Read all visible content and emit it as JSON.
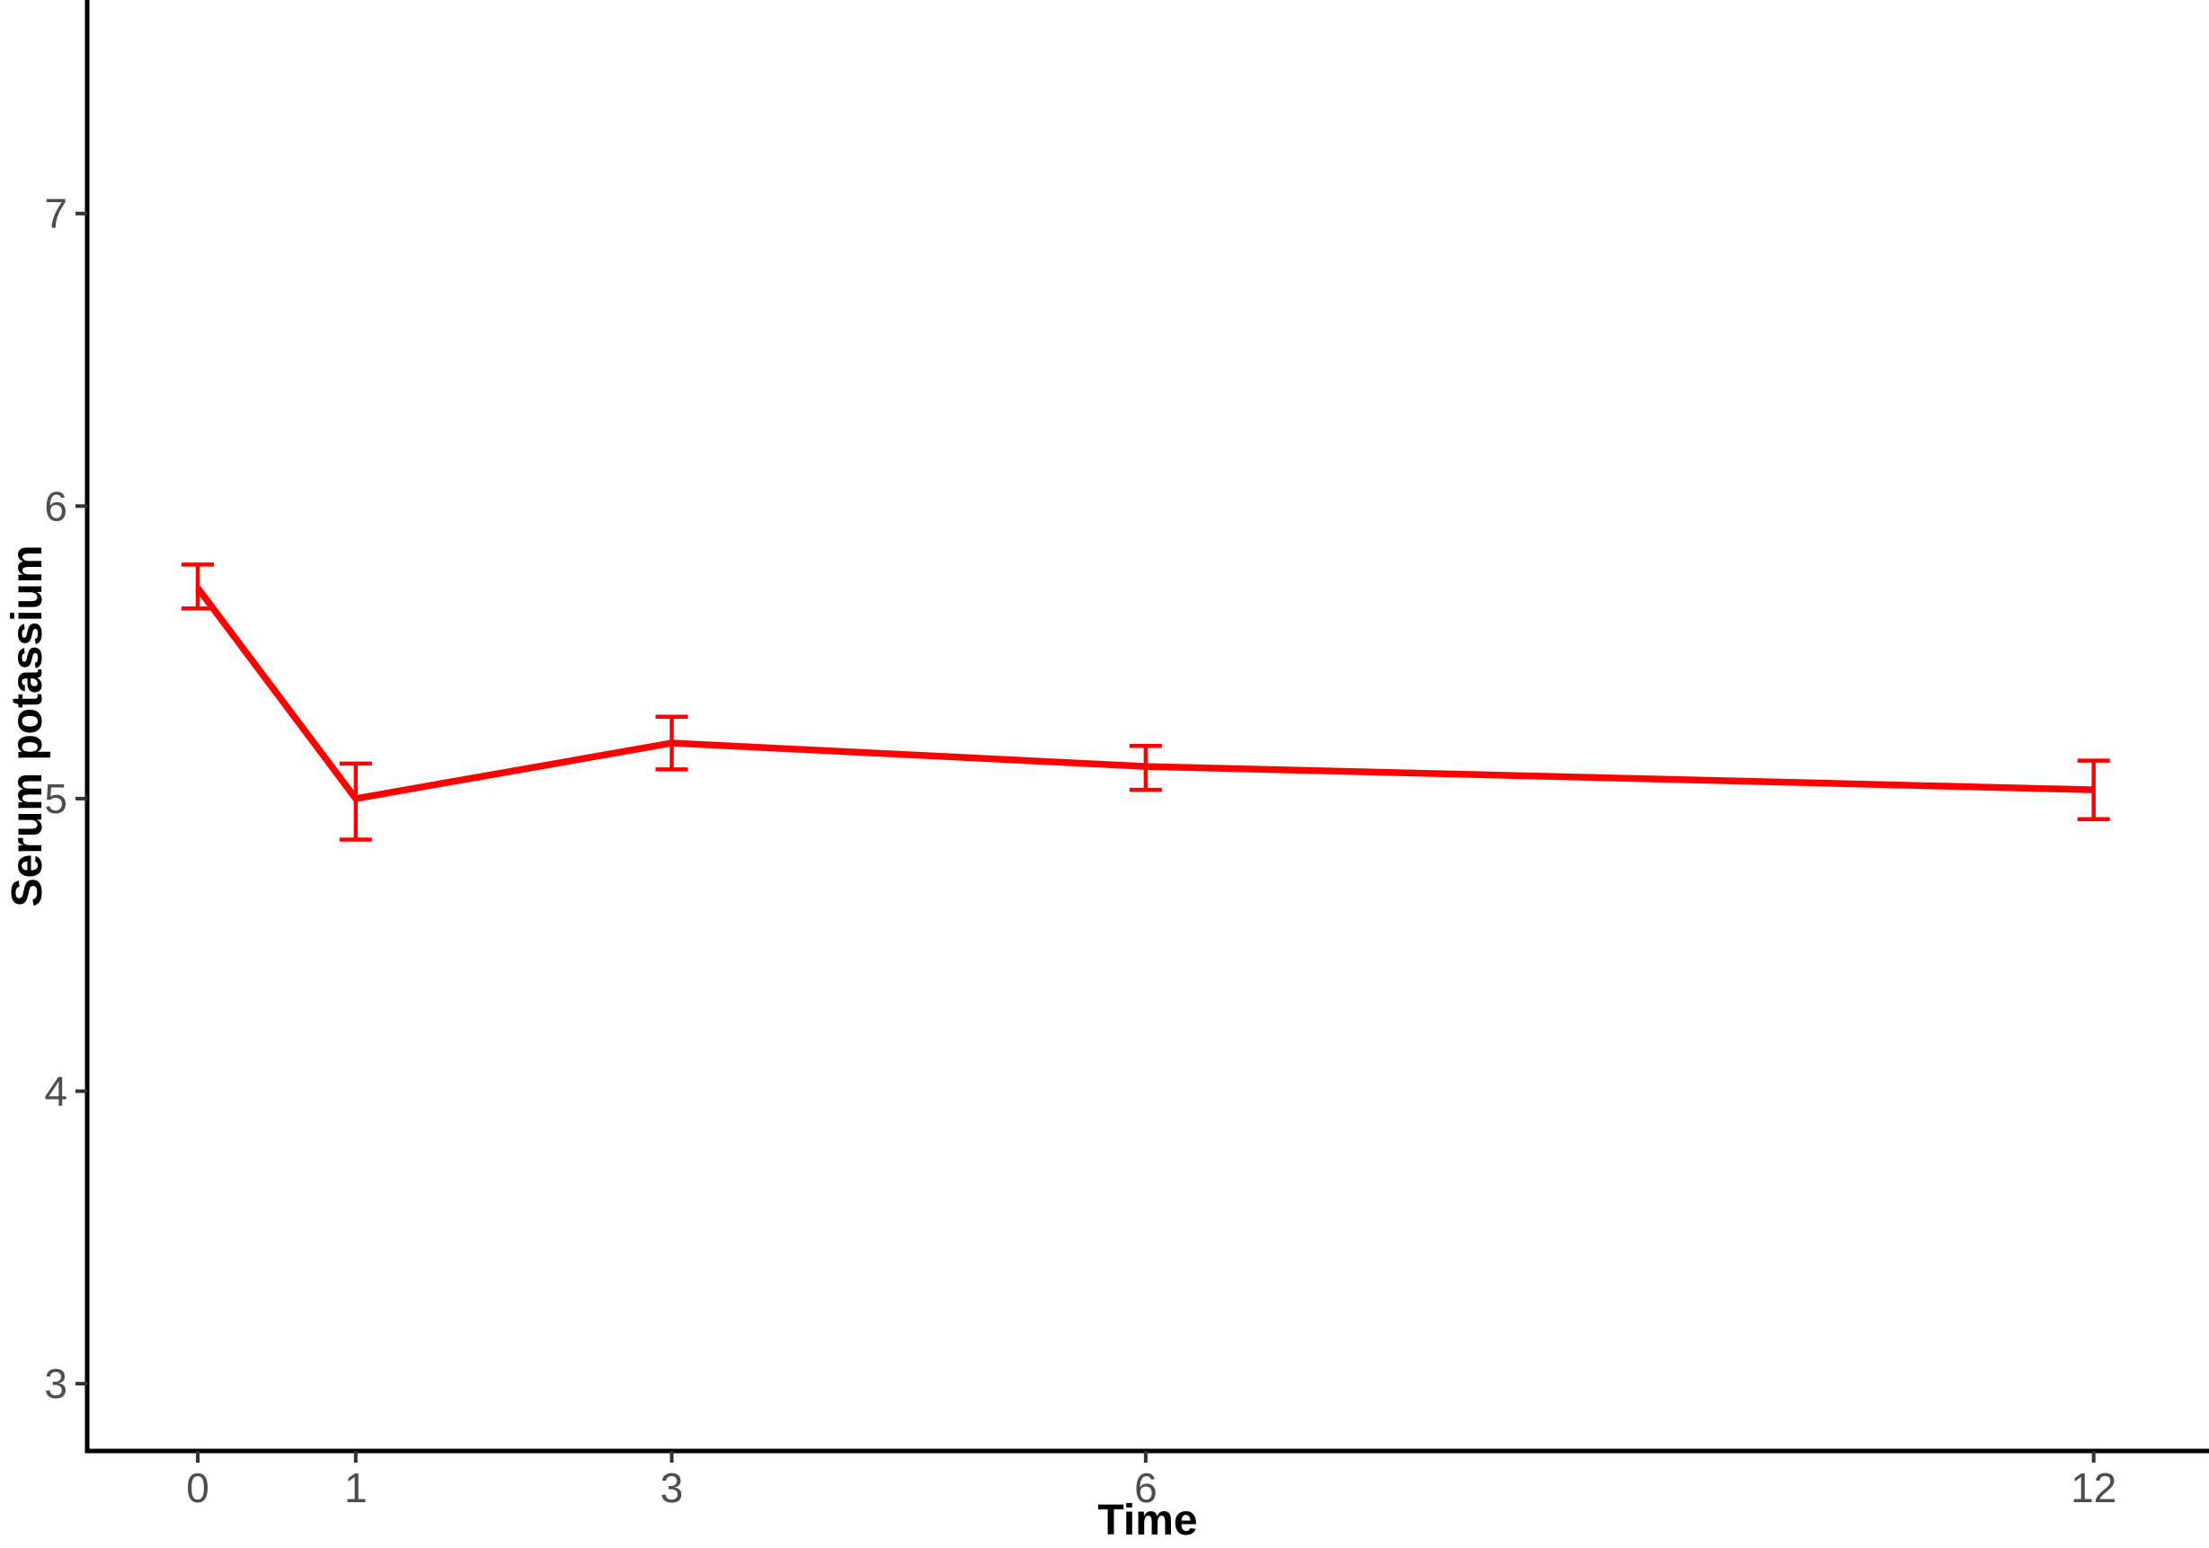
{
  "chart_data": {
    "type": "line",
    "title": "",
    "xlabel": "Time",
    "ylabel": "Serum potassium",
    "x": [
      0,
      1,
      3,
      6,
      12
    ],
    "series": [
      {
        "name": "Serum potassium",
        "color": "#ff0000",
        "values": [
          5.72,
          5.0,
          5.19,
          5.11,
          5.03
        ],
        "error_low": [
          5.65,
          4.86,
          5.1,
          5.03,
          4.93
        ],
        "error_high": [
          5.8,
          5.12,
          5.28,
          5.18,
          5.13
        ]
      }
    ],
    "error_bars": true,
    "x_ticks": [
      "0",
      "1",
      "3",
      "6",
      "12"
    ],
    "x_tick_values": [
      0,
      1,
      3,
      6,
      12
    ],
    "y_ticks": [
      "3",
      "4",
      "5",
      "6",
      "7"
    ],
    "y_tick_values": [
      3,
      4,
      5,
      6,
      7
    ],
    "xlim": [
      -0.7,
      12.73
    ],
    "ylim": [
      2.77,
      7.73
    ],
    "grid": false,
    "legend_position": "none"
  },
  "styles": {
    "line_color": "#ff0000",
    "axis_line_color": "#000000",
    "tick_mark_color": "#333333",
    "tick_label_color": "#4d4d4d",
    "axis_title_color": "#000000",
    "background_color": "#ffffff"
  }
}
